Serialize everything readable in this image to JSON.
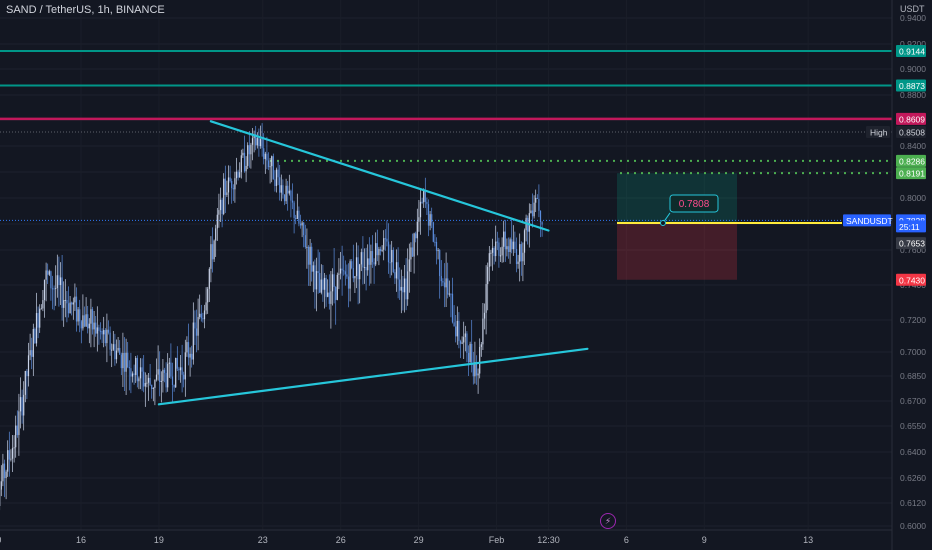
{
  "header": {
    "symbol_title": "SAND / TetherUS, 1h, BINANCE",
    "currency": "USDT"
  },
  "icons": {
    "alert": "lightning-bolt-icon"
  },
  "colors": {
    "background": "#131722",
    "candle": "#5b8dde",
    "candle_light": "#c9d3e8",
    "trendline": "#26c6da",
    "resistance_teal": "#009688",
    "resistance_magenta": "#c2185b",
    "target": "#4caf50",
    "entry": "#ffeb3b",
    "stop": "#f44336"
  },
  "chart_data": {
    "type": "line",
    "title": "",
    "ylim": [
      0.6,
      0.94
    ],
    "y_ticks": [
      "0.9400",
      "0.9200",
      "0.9000",
      "0.8800",
      "0.8600",
      "0.8400",
      "0.8200",
      "0.8000",
      "0.7800",
      "0.7600",
      "0.7400",
      "0.7200",
      "0.7000",
      "0.6850",
      "0.6700",
      "0.6550",
      "0.6400",
      "0.6260",
      "0.6120",
      "0.6000"
    ],
    "x_ticks": [
      "12:30",
      "16",
      "19",
      "23",
      "26",
      "29",
      "Feb",
      "12:30",
      "6",
      "9",
      "13"
    ],
    "horizontal_levels": [
      {
        "label": "0.9144",
        "value": 0.9144,
        "style": "teal"
      },
      {
        "label": "0.8873",
        "value": 0.8873,
        "style": "teal"
      },
      {
        "label": "0.8609",
        "value": 0.8609,
        "style": "magenta"
      }
    ],
    "price_tags": [
      {
        "label": "0.9144",
        "value": 0.9144,
        "color": "#009688"
      },
      {
        "label": "0.8873",
        "value": 0.8873,
        "color": "#009688"
      },
      {
        "label": "0.8609",
        "value": 0.8609,
        "color": "#c2185b"
      },
      {
        "label": "0.8286",
        "value": 0.8286,
        "color": "#4caf50"
      },
      {
        "label": "0.8191",
        "value": 0.8191,
        "color": "#4caf50"
      },
      {
        "label": "0.7828",
        "value": 0.7828,
        "color": "#2962ff"
      },
      {
        "label": "25:11",
        "value": 0.7782,
        "color": "#2962ff"
      },
      {
        "label": "0.7653",
        "value": 0.7653,
        "color": "#363a45"
      },
      {
        "label": "0.7430",
        "value": 0.743,
        "color": "#f23645"
      }
    ],
    "high": {
      "label": "High",
      "value": 0.8508,
      "value_label": "0.8508"
    },
    "symbol_label": "SANDUSDT",
    "target_levels": [
      0.8286,
      0.8191
    ],
    "position": {
      "entry": 0.7808,
      "entry_label": "0.7808",
      "target": 0.8191,
      "stop": 0.743
    },
    "trendlines": [
      {
        "name": "upper",
        "points": [
          {
            "x": 21.0,
            "y": 0.859
          },
          {
            "x": 34.0,
            "y": 0.775
          }
        ]
      },
      {
        "name": "lower",
        "points": [
          {
            "x": 19.0,
            "y": 0.668
          },
          {
            "x": 35.5,
            "y": 0.702
          }
        ]
      }
    ],
    "price_series_anchors": [
      {
        "x": 12.5,
        "y": 0.603
      },
      {
        "x": 13.5,
        "y": 0.65
      },
      {
        "x": 14.6,
        "y": 0.745
      },
      {
        "x": 16.5,
        "y": 0.715
      },
      {
        "x": 18.6,
        "y": 0.68
      },
      {
        "x": 19.9,
        "y": 0.69
      },
      {
        "x": 20.7,
        "y": 0.725
      },
      {
        "x": 21.5,
        "y": 0.805
      },
      {
        "x": 22.8,
        "y": 0.845
      },
      {
        "x": 24.2,
        "y": 0.79
      },
      {
        "x": 25.2,
        "y": 0.735
      },
      {
        "x": 26.2,
        "y": 0.745
      },
      {
        "x": 27.6,
        "y": 0.765
      },
      {
        "x": 28.5,
        "y": 0.74
      },
      {
        "x": 29.2,
        "y": 0.8
      },
      {
        "x": 29.7,
        "y": 0.76
      },
      {
        "x": 30.5,
        "y": 0.712
      },
      {
        "x": 31.3,
        "y": 0.69
      },
      {
        "x": 31.7,
        "y": 0.76
      },
      {
        "x": 32.3,
        "y": 0.765
      },
      {
        "x": 32.9,
        "y": 0.758
      },
      {
        "x": 33.5,
        "y": 0.805
      },
      {
        "x": 33.8,
        "y": 0.7828
      }
    ]
  }
}
